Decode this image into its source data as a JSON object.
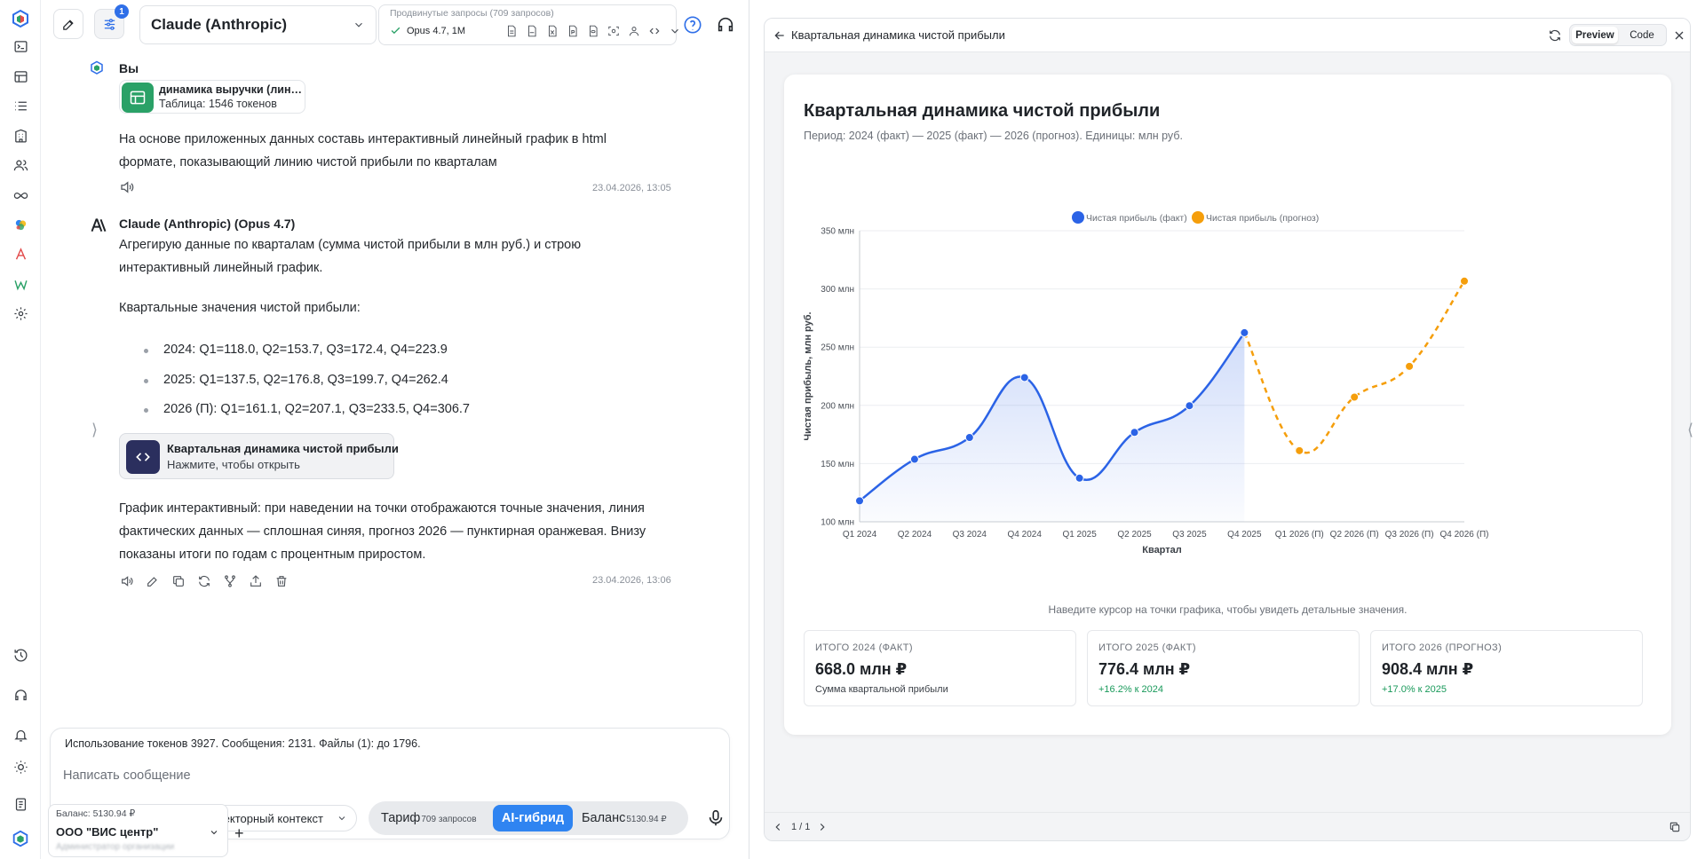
{
  "colors": {
    "accent": "#2f84f1",
    "fact_line": "#2b63e6",
    "forecast_line": "#f59e0b",
    "positive": "#1a9a5b",
    "chip_green": "#2aa167",
    "artifact_icon_bg": "#2b2f5e"
  },
  "rail": {
    "icons": [
      "app-logo-icon",
      "terminal-icon",
      "table-icon",
      "list-icon",
      "building-icon",
      "users-icon",
      "infinity-icon",
      "colorful-app-icon",
      "anthropic-icon",
      "w-app-icon",
      "settings-icon",
      "history-icon",
      "headset-icon",
      "bell-icon",
      "sun-icon",
      "document-icon",
      "workspace-logo-icon"
    ]
  },
  "header": {
    "filters_badge": "1",
    "model_name": "Claude (Anthropic)",
    "advanced_title": "Продвинутые запросы (709 запросов)",
    "advanced_model": "Opus 4.7, 1M",
    "advanced_icons": [
      "file-doc-icon",
      "file-pdf-icon",
      "file-xls-icon",
      "file-ppt-icon",
      "file-db-icon",
      "scan-icon",
      "agents-icon",
      "code-icon",
      "chevron-down-icon"
    ]
  },
  "user_message": {
    "author": "Вы",
    "file": {
      "name": "динамика выручки (линейный график).xlsx",
      "meta": "Таблица: 1546 токенов"
    },
    "lines": [
      "На основе приложенных данных составь интерактивный линейный график в html",
      "формате, показывающий линию чистой прибыли по кварталам"
    ],
    "timestamp": "23.04.2026, 13:05"
  },
  "assistant_message": {
    "author": "Claude (Anthropic) (Opus 4.7)",
    "intro_lines": [
      "Агрегирую данные по кварталам (сумма чистой прибыли в млн руб.) и строю",
      "интерактивный линейный график."
    ],
    "values_heading": "Квартальные значения чистой прибыли:",
    "bullets": [
      "2024: Q1=118.0, Q2=153.7, Q3=172.4, Q4=223.9",
      "2025: Q1=137.5, Q2=176.8, Q3=199.7, Q4=262.4",
      "2026 (П): Q1=161.1, Q2=207.1, Q3=233.5, Q4=306.7"
    ],
    "artifact": {
      "title": "Квартальная динамика чистой прибыли",
      "subtitle": "Нажмите, чтобы открыть"
    },
    "outro_lines": [
      "График интерактивный: при наведении на точки отображаются точные значения, линия",
      "фактических данных — сплошная синяя, прогноз 2026 — пунктирная оранжевая. Внизу",
      "показаны итоги по годам с процентным приростом."
    ],
    "timestamp": "23.04.2026, 13:06"
  },
  "composer": {
    "usage": "Использование токенов 3927. Сообщения: 2131. Файлы (1): до 1796.",
    "placeholder": "Написать сообщение",
    "vector_context": "Векторный контекст",
    "tariff": "Тариф",
    "tariff_count": "709 запросов",
    "ai_hybrid": "AI-гибрид",
    "balance": "Баланс",
    "balance_value": "5130.94 ₽"
  },
  "org": {
    "balance": "Баланс: 5130.94 ₽",
    "name": "ООО \"ВИС центр\"",
    "sub": "Администратор организации"
  },
  "preview": {
    "title": "Квартальная динамика чистой прибыли",
    "tab_preview": "Preview",
    "tab_code": "Code",
    "page": "1 / 1",
    "card_title": "Квартальная динамика чистой прибыли",
    "card_subtitle": "Период: 2024 (факт) — 2025 (факт) — 2026 (прогноз). Единицы: млн руб.",
    "hint": "Наведите курсор на точки графика, чтобы увидеть детальные значения.",
    "stats": [
      {
        "label": "ИТОГО 2024 (ФАКТ)",
        "value": "668.0 млн ₽",
        "sub": "Сумма квартальной прибыли"
      },
      {
        "label": "ИТОГО 2025 (ФАКТ)",
        "value": "776.4 млн ₽",
        "sub": "+16.2% к 2024"
      },
      {
        "label": "ИТОГО 2026 (ПРОГНОЗ)",
        "value": "908.4 млн ₽",
        "sub": "+17.0% к 2025"
      }
    ]
  },
  "chart_data": {
    "type": "line",
    "title": "Квартальная динамика чистой прибыли",
    "xlabel": "Квартал",
    "ylabel": "Чистая прибыль, млн руб.",
    "categories": [
      "Q1 2024",
      "Q2 2024",
      "Q3 2024",
      "Q4 2024",
      "Q1 2025",
      "Q2 2025",
      "Q3 2025",
      "Q4 2025",
      "Q1 2026 (П)",
      "Q2 2026 (П)",
      "Q3 2026 (П)",
      "Q4 2026 (П)"
    ],
    "series": [
      {
        "name": "Чистая прибыль (факт)",
        "color": "#2b63e6",
        "style": "solid",
        "fill": true,
        "values": [
          118.0,
          153.7,
          172.4,
          223.9,
          137.5,
          176.8,
          199.7,
          262.4,
          null,
          null,
          null,
          null
        ]
      },
      {
        "name": "Чистая прибыль (прогноз)",
        "color": "#f59e0b",
        "style": "dashed",
        "fill": false,
        "values": [
          null,
          null,
          null,
          null,
          null,
          null,
          null,
          262.4,
          161.1,
          207.1,
          233.5,
          306.7
        ]
      }
    ],
    "ylim": [
      100,
      350
    ],
    "yticks": [
      100,
      150,
      200,
      250,
      300,
      350
    ],
    "ytick_labels": [
      "100 млн",
      "150 млн",
      "200 млн",
      "250 млн",
      "300 млн",
      "350 млн"
    ],
    "grid": true,
    "legend": "top-center"
  }
}
